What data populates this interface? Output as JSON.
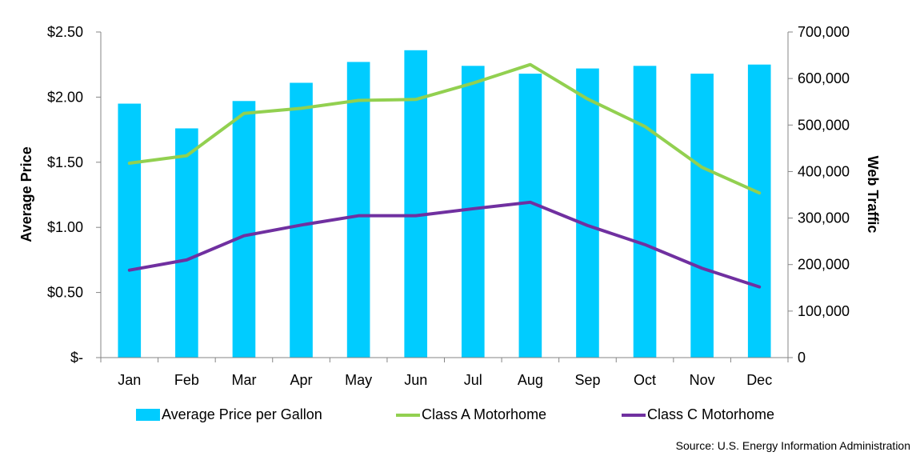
{
  "chart_data": {
    "type": "bar",
    "categories": [
      "Jan",
      "Feb",
      "Mar",
      "Apr",
      "May",
      "Jun",
      "Jul",
      "Aug",
      "Sep",
      "Oct",
      "Nov",
      "Dec"
    ],
    "series": [
      {
        "name": "Average Price per Gallon",
        "type": "bar",
        "axis": "left",
        "color": "#00CCFF",
        "values": [
          1.95,
          1.76,
          1.97,
          2.11,
          2.27,
          2.36,
          2.24,
          2.18,
          2.22,
          2.24,
          2.18,
          2.25
        ]
      },
      {
        "name": "Class A Motorhome",
        "type": "line",
        "axis": "right",
        "color": "#92D050",
        "values": [
          418000,
          434000,
          525000,
          536000,
          553000,
          555000,
          590000,
          630000,
          556000,
          497000,
          409000,
          354000
        ]
      },
      {
        "name": "Class C Motorhome",
        "type": "line",
        "axis": "right",
        "color": "#7030A0",
        "values": [
          188000,
          210000,
          262000,
          285000,
          305000,
          305000,
          320000,
          334000,
          284000,
          243000,
          192000,
          152000
        ]
      }
    ],
    "ylabel": "Average Price",
    "y2label": "Web Traffic",
    "ylim": [
      0,
      2.5
    ],
    "y2lim": [
      0,
      700000
    ],
    "yticks": [
      "$-",
      "$0.50",
      "$1.00",
      "$1.50",
      "$2.00",
      "$2.50"
    ],
    "y2ticks": [
      "0",
      "100,000",
      "200,000",
      "300,000",
      "400,000",
      "500,000",
      "600,000",
      "700,000"
    ],
    "legend_position": "bottom",
    "grid": false
  },
  "source_text": "Source: U.S. Energy Information Administration"
}
